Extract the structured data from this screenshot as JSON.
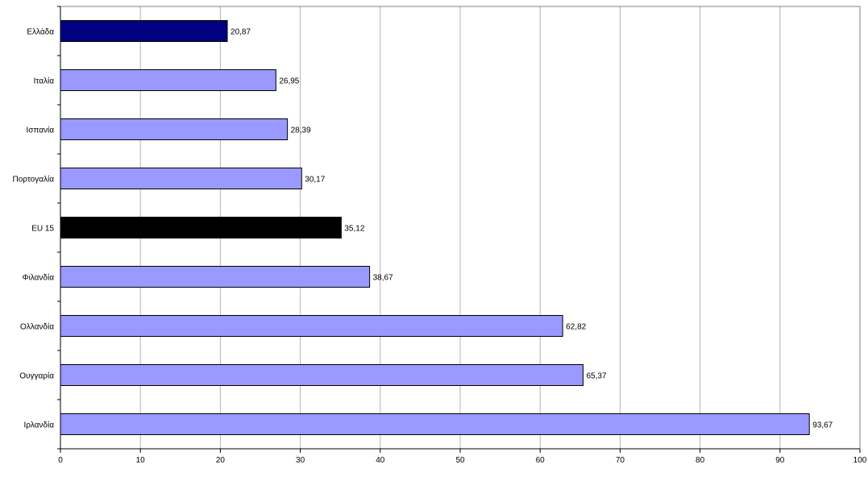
{
  "chart_data": {
    "type": "bar",
    "orientation": "horizontal",
    "categories": [
      "Ελλάδα",
      "Ιταλία",
      "Ισπανία",
      "Πορτογαλία",
      "EU 15",
      "Φιλανδία",
      "Ολλανδία",
      "Ουγγαρία",
      "Ιρλανδία"
    ],
    "values": [
      20.87,
      26.95,
      28.39,
      30.17,
      35.12,
      38.67,
      62.82,
      65.37,
      93.67
    ],
    "value_labels": [
      "20,87",
      "26,95",
      "28,39",
      "30,17",
      "35,12",
      "38,67",
      "62,82",
      "65,37",
      "93,67"
    ],
    "bar_colors": [
      "#000080",
      "#9999ff",
      "#9999ff",
      "#9999ff",
      "#000000",
      "#9999ff",
      "#9999ff",
      "#9999ff",
      "#9999ff"
    ],
    "x_ticks": [
      "0",
      "10",
      "20",
      "30",
      "40",
      "50",
      "60",
      "70",
      "80",
      "90",
      "100"
    ],
    "xlim": [
      0,
      100
    ],
    "grid": true,
    "legend": "none",
    "title": "",
    "xlabel": "",
    "ylabel": ""
  }
}
